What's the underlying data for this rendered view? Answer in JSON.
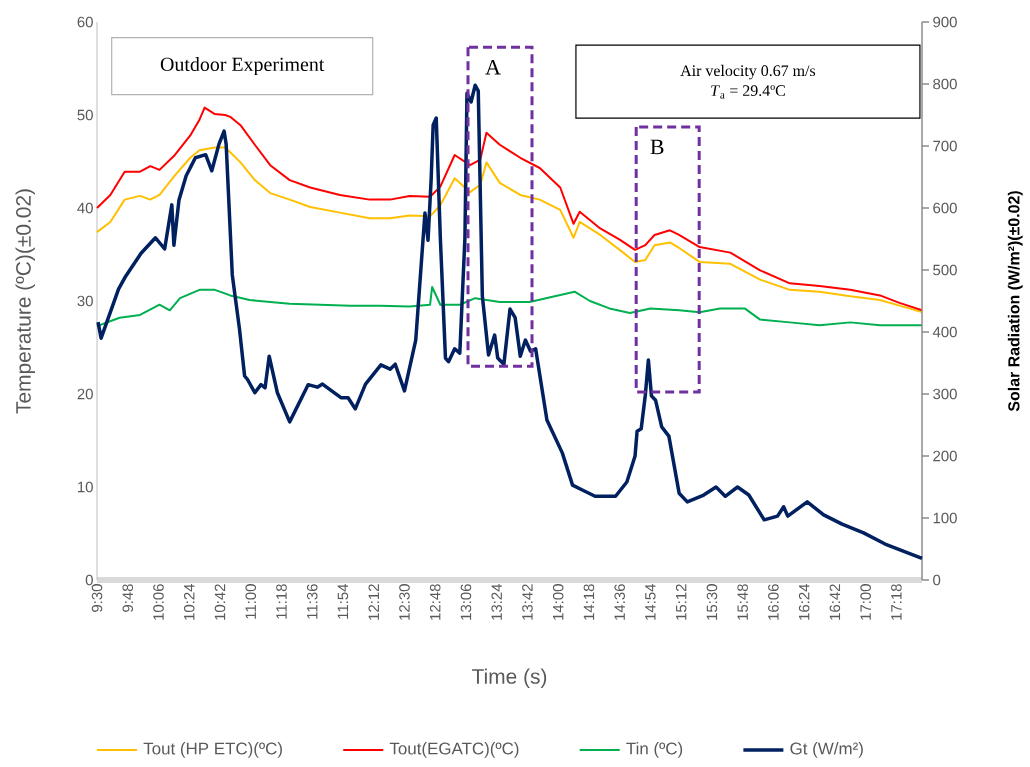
{
  "chart_data": {
    "type": "line",
    "xlabel": "Time (s)",
    "ylabel": "Temperature (ºC)(±0.02)",
    "y2label": "Solar Radiation (W/m²)(±0.02)",
    "annotations": [
      "Outdoor Experiment",
      "Air velocity 0.67 m/s",
      "*T*$_{a}$ = 29.4ºC",
      "A",
      "B"
    ],
    "x": [
      9.5,
      9.63,
      9.77,
      9.92,
      10.02,
      10.11,
      10.26,
      10.41,
      10.5,
      10.55,
      10.65,
      10.75,
      10.8,
      10.9,
      11.04,
      11.19,
      11.38,
      11.58,
      11.87,
      12.16,
      12.36,
      12.55,
      12.75,
      12.85,
      12.99,
      13.14,
      13.24,
      13.3,
      13.43,
      13.63,
      13.82,
      14.02,
      14.15,
      14.21,
      14.41,
      14.6,
      14.75,
      14.85,
      14.94,
      15.09,
      15.18,
      15.38,
      15.68,
      15.97,
      16.26,
      16.55,
      16.85,
      17.14,
      17.33,
      17.55
    ],
    "xlim": [
      9.5,
      17.55
    ],
    "xticks": [
      {
        "value": 9.5,
        "label": "9:30"
      },
      {
        "value": 9.8,
        "label": "9:48"
      },
      {
        "value": 10.1,
        "label": "10:06"
      },
      {
        "value": 10.4,
        "label": "10:24"
      },
      {
        "value": 10.7,
        "label": "10:42"
      },
      {
        "value": 11.0,
        "label": "11:00"
      },
      {
        "value": 11.3,
        "label": "11:18"
      },
      {
        "value": 11.6,
        "label": "11:36"
      },
      {
        "value": 11.9,
        "label": "11:54"
      },
      {
        "value": 12.2,
        "label": "12:12"
      },
      {
        "value": 12.5,
        "label": "12:30"
      },
      {
        "value": 12.8,
        "label": "12:48"
      },
      {
        "value": 13.1,
        "label": "13:06"
      },
      {
        "value": 13.4,
        "label": "13:24"
      },
      {
        "value": 13.7,
        "label": "13:42"
      },
      {
        "value": 14.0,
        "label": "14:00"
      },
      {
        "value": 14.3,
        "label": "14:18"
      },
      {
        "value": 14.6,
        "label": "14:36"
      },
      {
        "value": 14.9,
        "label": "14:54"
      },
      {
        "value": 15.2,
        "label": "15:12"
      },
      {
        "value": 15.5,
        "label": "15:30"
      },
      {
        "value": 15.8,
        "label": "15:48"
      },
      {
        "value": 16.1,
        "label": "16:06"
      },
      {
        "value": 16.4,
        "label": "16:24"
      },
      {
        "value": 16.7,
        "label": "16:42"
      },
      {
        "value": 17.0,
        "label": "17:00"
      },
      {
        "value": 17.3,
        "label": "17:18"
      }
    ],
    "ylim": [
      0,
      60
    ],
    "yticks": [
      0,
      10,
      20,
      30,
      40,
      50,
      60
    ],
    "y2lim": [
      0,
      900
    ],
    "y2ticks": [
      0,
      100,
      200,
      300,
      400,
      500,
      600,
      700,
      800,
      900
    ],
    "legend": "bottom",
    "series": [
      {
        "name": "Tout (HP ETC)(ºC)",
        "color": "#ffc000",
        "values": [
          37.4,
          38.5,
          40.9,
          41.3,
          40.9,
          41.4,
          43.5,
          45.4,
          46.2,
          46.3,
          46.5,
          46.5,
          46.0,
          44.9,
          43.0,
          41.6,
          40.9,
          40.1,
          39.5,
          38.9,
          38.9,
          39.2,
          39.1,
          40.3,
          43.2,
          41.7,
          42.5,
          44.9,
          42.7,
          41.4,
          40.9,
          39.8,
          36.8,
          38.5,
          37.1,
          35.5,
          34.2,
          34.4,
          36.0,
          36.3,
          35.7,
          34.2,
          34.0,
          32.3,
          31.2,
          31.0,
          30.5,
          30.1,
          29.5,
          28.8
        ]
      },
      {
        "name": "Tout(EGATC)(ºC)",
        "color": "#ff0000",
        "values": [
          40.0,
          41.4,
          43.9,
          43.9,
          44.5,
          44.1,
          45.7,
          47.8,
          49.5,
          50.8,
          50.1,
          50.0,
          49.8,
          48.9,
          46.8,
          44.6,
          43.0,
          42.2,
          41.4,
          40.9,
          40.9,
          41.3,
          41.2,
          42.3,
          45.7,
          44.6,
          45.2,
          48.1,
          46.8,
          45.4,
          44.3,
          42.2,
          38.3,
          39.6,
          37.8,
          36.6,
          35.5,
          36.0,
          37.1,
          37.6,
          37.1,
          35.8,
          35.2,
          33.3,
          31.9,
          31.6,
          31.2,
          30.6,
          29.8,
          29.0
        ]
      },
      {
        "name": "Tin (ºC)",
        "color": "#00b050",
        "x": [
          9.5,
          9.72,
          9.92,
          10.11,
          10.21,
          10.31,
          10.5,
          10.65,
          10.8,
          10.99,
          11.19,
          11.38,
          11.68,
          11.97,
          12.26,
          12.55,
          12.75,
          12.77,
          12.85,
          13.04,
          13.19,
          13.43,
          13.72,
          14.16,
          14.31,
          14.5,
          14.7,
          14.9,
          15.18,
          15.38,
          15.58,
          15.82,
          15.97,
          16.26,
          16.55,
          16.85,
          17.14,
          17.55
        ],
        "values": [
          27.3,
          28.2,
          28.5,
          29.6,
          29.0,
          30.3,
          31.2,
          31.2,
          30.6,
          30.1,
          29.9,
          29.7,
          29.6,
          29.5,
          29.5,
          29.4,
          29.6,
          31.5,
          29.6,
          29.6,
          30.3,
          29.9,
          29.9,
          31.0,
          30.0,
          29.2,
          28.7,
          29.2,
          29.0,
          28.8,
          29.2,
          29.2,
          28.0,
          27.7,
          27.4,
          27.7,
          27.4,
          27.4
        ]
      },
      {
        "name": "Gt (W/m²)",
        "color": "#002060",
        "axis": "y2",
        "x": [
          9.51,
          9.54,
          9.71,
          9.78,
          9.93,
          10.07,
          10.16,
          10.23,
          10.25,
          10.3,
          10.37,
          10.46,
          10.56,
          10.62,
          10.69,
          10.74,
          10.76,
          10.82,
          10.89,
          10.94,
          10.97,
          11.04,
          11.1,
          11.14,
          11.18,
          11.26,
          11.38,
          11.56,
          11.65,
          11.7,
          11.88,
          11.95,
          12.02,
          12.12,
          12.27,
          12.36,
          12.41,
          12.5,
          12.61,
          12.7,
          12.73,
          12.76,
          12.78,
          12.81,
          12.85,
          12.9,
          12.93,
          12.99,
          13.04,
          13.09,
          13.11,
          13.15,
          13.19,
          13.22,
          13.26,
          13.32,
          13.38,
          13.41,
          13.47,
          13.53,
          13.58,
          13.63,
          13.68,
          13.73,
          13.78,
          13.89,
          14.04,
          14.14,
          14.25,
          14.36,
          14.56,
          14.67,
          14.75,
          14.77,
          14.81,
          14.85,
          14.88,
          14.91,
          14.95,
          15.01,
          15.08,
          15.18,
          15.26,
          15.42,
          15.54,
          15.63,
          15.75,
          15.86,
          16.01,
          16.14,
          16.2,
          16.24,
          16.43,
          16.59,
          16.77,
          16.98,
          17.19,
          17.55
        ],
        "values": [
          416,
          390,
          469,
          490,
          527,
          552,
          534,
          605,
          540,
          613,
          652,
          681,
          686,
          660,
          703,
          724,
          703,
          492,
          405,
          329,
          323,
          302,
          315,
          310,
          361,
          302,
          255,
          315,
          311,
          316,
          294,
          294,
          276,
          316,
          347,
          340,
          348,
          305,
          387,
          592,
          548,
          645,
          734,
          745,
          552,
          358,
          352,
          373,
          366,
          552,
          785,
          771,
          798,
          789,
          458,
          363,
          395,
          358,
          348,
          437,
          423,
          361,
          387,
          369,
          373,
          258,
          205,
          153,
          144,
          135,
          135,
          158,
          200,
          240,
          244,
          298,
          355,
          297,
          290,
          247,
          232,
          140,
          126,
          137,
          150,
          135,
          150,
          137,
          97,
          103,
          118,
          103,
          126,
          105,
          90,
          76,
          58,
          35
        ]
      }
    ]
  }
}
